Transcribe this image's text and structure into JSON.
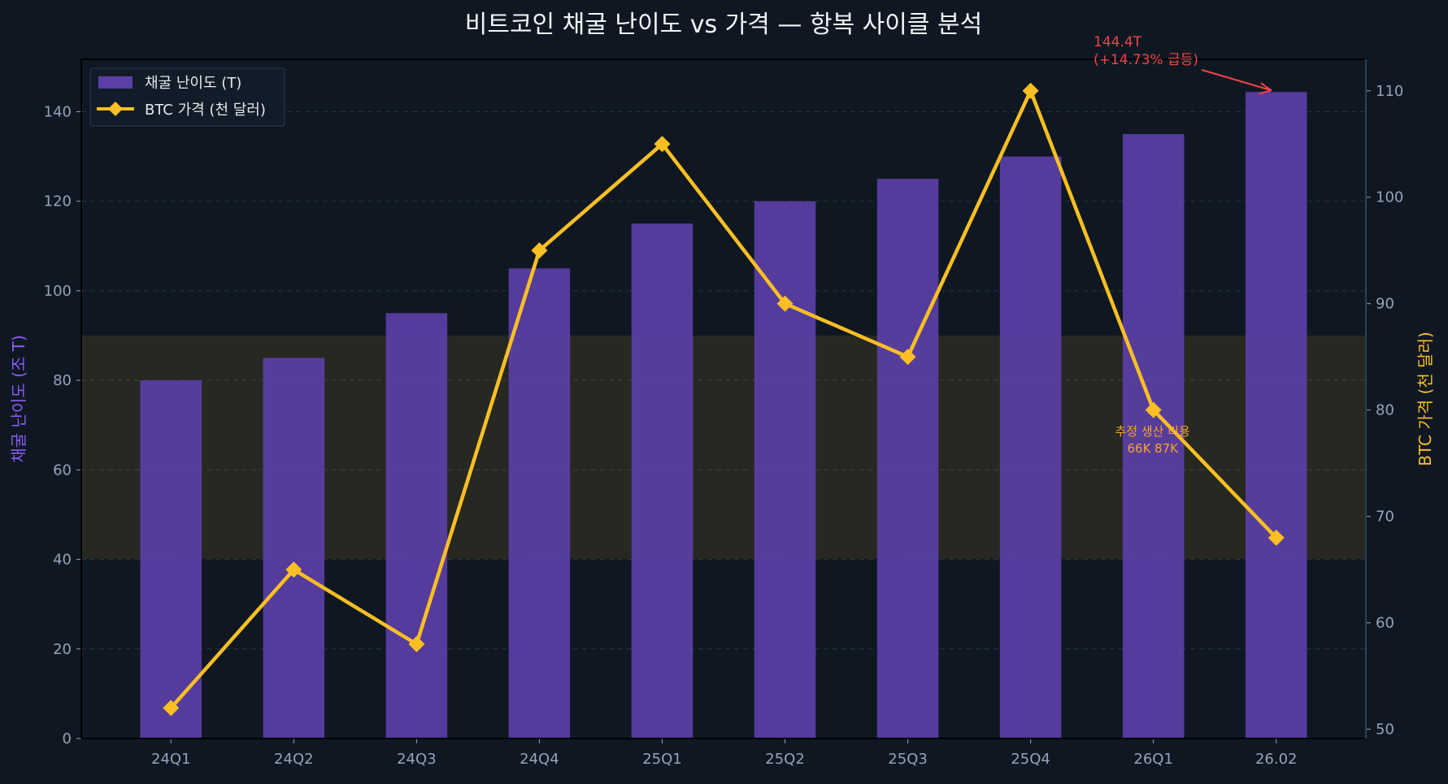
{
  "chart_data": {
    "type": "bar+line",
    "title": "비트코인 채굴 난이도 vs 가격 — 항복 사이클 분석",
    "categories": [
      "24Q1",
      "24Q2",
      "24Q3",
      "24Q4",
      "25Q1",
      "25Q2",
      "25Q3",
      "25Q4",
      "26Q1",
      "26.02"
    ],
    "series": [
      {
        "name": "채굴 난이도 (T)",
        "type": "bar",
        "axis": "left",
        "color": "#5b3fa6",
        "values": [
          80,
          85,
          95,
          105,
          115,
          120,
          125,
          130,
          135,
          144.4
        ]
      },
      {
        "name": "BTC 가격 (천 달러)",
        "type": "line",
        "axis": "right",
        "color": "#fbbf24",
        "marker": "diamond",
        "values": [
          52,
          65,
          58,
          95,
          105,
          90,
          85,
          110,
          80,
          68
        ]
      }
    ],
    "ylabel": "채굴 난이도 (조 T)",
    "ylabel_color": "#8b5cf6",
    "y2label": "BTC 가격 (천 달러)",
    "y2label_color": "#fbbf24",
    "ylim": [
      0,
      151.7
    ],
    "y2lim": [
      49.13,
      112.96
    ],
    "yticks": [
      0,
      20,
      40,
      60,
      80,
      100,
      120,
      140
    ],
    "y2ticks": [
      50,
      60,
      70,
      80,
      90,
      100,
      110
    ],
    "grid": true,
    "legend": "top-left",
    "band": {
      "y2_from": 66,
      "y2_to": 87,
      "color": "#fbbf24",
      "label": "추정 생산 비용",
      "sublabel": "66K 87K"
    },
    "annotation": {
      "text_line1": "144.4T",
      "text_line2": "(+14.73% 급등)",
      "color": "#ef4444",
      "target_category": "26.02",
      "target_value": 144.4
    }
  }
}
